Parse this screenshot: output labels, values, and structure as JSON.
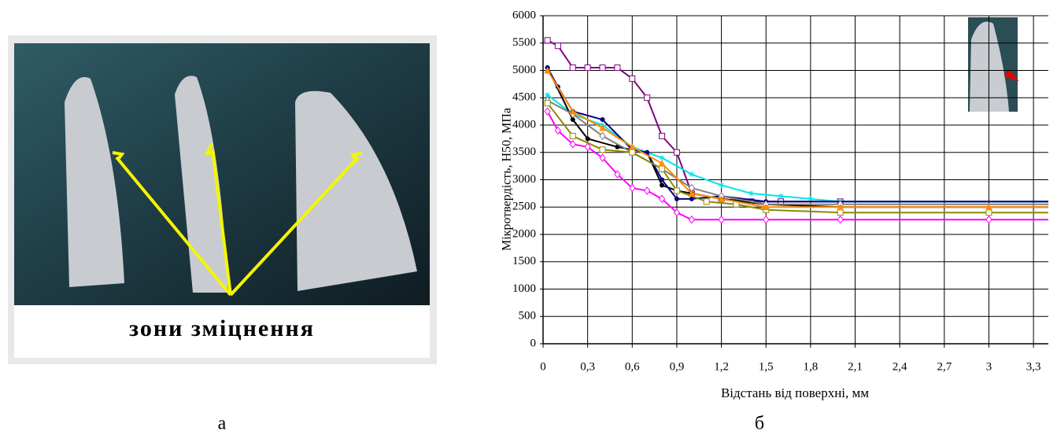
{
  "photo": {
    "caption": "зони зміцнення"
  },
  "panel_labels": [
    "а",
    "б"
  ],
  "chart_data": {
    "type": "line",
    "xlabel": "Відстань від поверхні, мм",
    "ylabel": "Мікротвердість,  Н50, МПа",
    "xlim": [
      0,
      3.4
    ],
    "ylim": [
      0,
      6000
    ],
    "xticks": [
      0,
      {
        "value": 0.3,
        "label": "0,3"
      },
      {
        "value": 0.6,
        "label": "0,6"
      },
      {
        "value": 0.9,
        "label": "0,9"
      },
      {
        "value": 1.2,
        "label": "1,2"
      },
      {
        "value": 1.5,
        "label": "1,5"
      },
      {
        "value": 1.8,
        "label": "1,8"
      },
      {
        "value": 2.1,
        "label": "2,1"
      },
      {
        "value": 2.4,
        "label": "2,4"
      },
      {
        "value": 2.7,
        "label": "2,7"
      },
      3,
      {
        "value": 3.3,
        "label": "3,3"
      }
    ],
    "yticks": [
      0,
      500,
      1000,
      1500,
      2000,
      2500,
      3000,
      3500,
      4000,
      4500,
      5000,
      5500,
      6000
    ],
    "grid": true,
    "series": [
      {
        "color": "#800080",
        "marker": "square",
        "x": [
          0.03,
          0.1,
          0.2,
          0.3,
          0.4,
          0.5,
          0.6,
          0.7,
          0.8,
          0.9,
          1.0,
          1.2,
          1.4,
          1.6,
          2.0,
          3.4
        ],
        "values": [
          5550,
          5450,
          5050,
          5050,
          5050,
          5050,
          4850,
          4500,
          3800,
          3500,
          2750,
          2650,
          2600,
          2600,
          2600,
          2600
        ]
      },
      {
        "color": "#ff00ff",
        "marker": "diamond",
        "x": [
          0.03,
          0.1,
          0.2,
          0.3,
          0.4,
          0.5,
          0.6,
          0.7,
          0.8,
          0.9,
          1.0,
          1.2,
          1.5,
          2.0,
          3.0,
          3.4
        ],
        "values": [
          4250,
          3900,
          3650,
          3600,
          3400,
          3100,
          2850,
          2800,
          2650,
          2400,
          2270,
          2270,
          2270,
          2270,
          2270,
          2270
        ]
      },
      {
        "color": "#00e5ee",
        "marker": "star",
        "x": [
          0.03,
          0.2,
          0.4,
          0.6,
          0.8,
          1.0,
          1.2,
          1.4,
          1.6,
          1.8,
          2.0,
          3.4
        ],
        "values": [
          4550,
          4200,
          4000,
          3600,
          3400,
          3100,
          2900,
          2750,
          2700,
          2650,
          2600,
          2600
        ]
      },
      {
        "color": "#000000",
        "marker": "circle",
        "x": [
          0.03,
          0.2,
          0.3,
          0.5,
          0.7,
          0.8,
          0.9,
          1.0,
          1.2,
          1.5,
          2.0,
          3.4
        ],
        "values": [
          5050,
          4100,
          3750,
          3600,
          3500,
          2900,
          2800,
          2750,
          2650,
          2550,
          2500,
          2500
        ]
      },
      {
        "color": "#000080",
        "marker": "circle",
        "x": [
          0.03,
          0.1,
          0.2,
          0.4,
          0.6,
          0.7,
          0.8,
          0.9,
          1.0,
          1.2,
          1.5,
          3.4
        ],
        "values": [
          5050,
          4700,
          4250,
          4100,
          3550,
          3500,
          3000,
          2650,
          2650,
          2700,
          2600,
          2600
        ]
      },
      {
        "color": "#808080",
        "marker": "diamond",
        "x": [
          0.03,
          0.2,
          0.4,
          0.6,
          0.8,
          1.0,
          1.2,
          1.5,
          2.0,
          3.4
        ],
        "values": [
          4450,
          4200,
          3800,
          3500,
          3200,
          2850,
          2700,
          2550,
          2550,
          2550
        ]
      },
      {
        "color": "#8b8b00",
        "marker": "square",
        "x": [
          0.03,
          0.2,
          0.4,
          0.6,
          0.8,
          0.9,
          1.1,
          1.3,
          1.5,
          2.0,
          3.0,
          3.4
        ],
        "values": [
          4400,
          3800,
          3550,
          3500,
          3200,
          2800,
          2600,
          2550,
          2450,
          2400,
          2400,
          2400
        ]
      },
      {
        "color": "#ff8c00",
        "marker": "triangle",
        "x": [
          0.03,
          0.2,
          0.4,
          0.6,
          0.8,
          1.0,
          1.2,
          1.5,
          2.0,
          3.0,
          3.4
        ],
        "values": [
          5000,
          4250,
          3950,
          3600,
          3300,
          2750,
          2650,
          2500,
          2500,
          2500,
          2500
        ]
      }
    ]
  }
}
